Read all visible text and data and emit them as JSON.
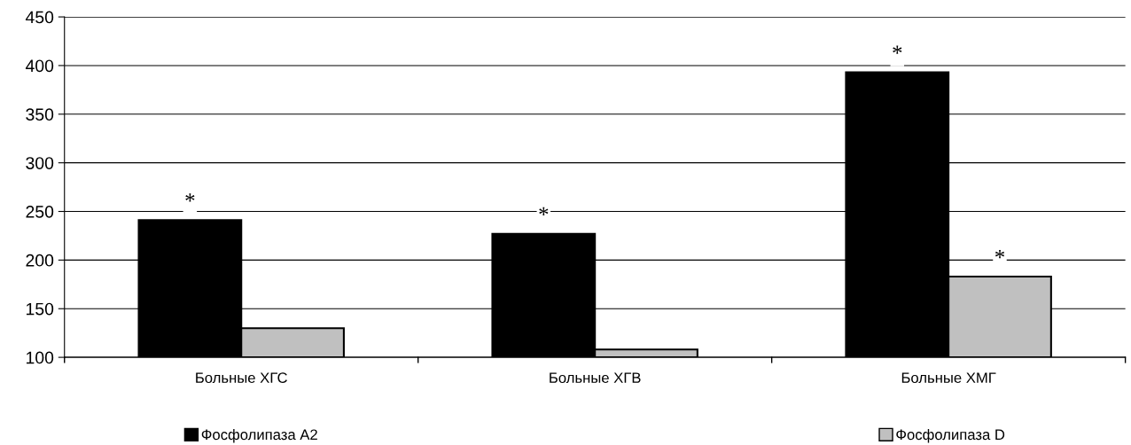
{
  "chart_data": {
    "type": "bar",
    "categories": [
      "Больные ХГС",
      "Больные ХГВ",
      "Больные ХМГ"
    ],
    "series": [
      {
        "name": "Фосфолипаза А2",
        "color": "#000000",
        "values": [
          241,
          227,
          393
        ]
      },
      {
        "name": "Фосфолипаза D",
        "color": "#c0c0c0",
        "values": [
          130,
          108,
          183
        ]
      }
    ],
    "ylim": [
      100,
      450
    ],
    "yticks": [
      100,
      150,
      200,
      250,
      300,
      350,
      400,
      450
    ],
    "grid": "y",
    "legend": "bottom",
    "annotations": [
      {
        "text": "*",
        "x": "Больные ХГС",
        "y": 241
      },
      {
        "text": "*",
        "x": "Больные ХГВ",
        "y": 227
      },
      {
        "text": "*",
        "x": "Больные ХМГ",
        "y": 393
      },
      {
        "text": "*",
        "x": "Больные ХМГ",
        "y": 183
      }
    ]
  }
}
